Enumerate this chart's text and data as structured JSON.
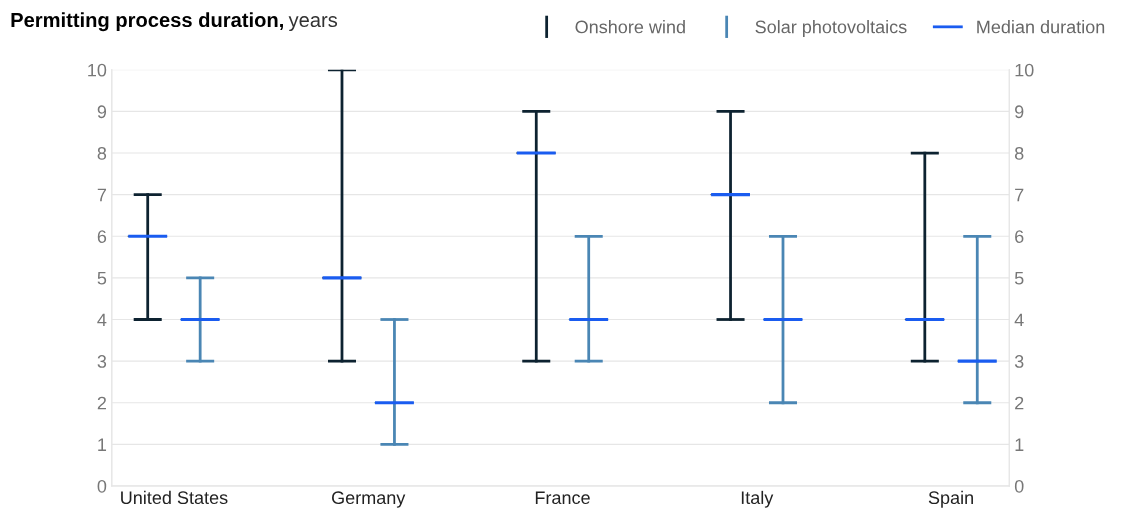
{
  "chart_data": {
    "type": "box",
    "title": "Permitting process duration,",
    "ylabel": "years",
    "categories": [
      "United States",
      "Germany",
      "France",
      "Italy",
      "Spain"
    ],
    "series": [
      {
        "name": "Onshore wind",
        "color": "#0d2230",
        "boxes": [
          {
            "low": 4,
            "q1": 6,
            "median": 6,
            "q3": 6,
            "high": 7
          },
          {
            "low": 3,
            "q1": 5,
            "median": 5,
            "q3": 5,
            "high": 10
          },
          {
            "low": 3,
            "q1": 8,
            "median": 8,
            "q3": 8,
            "high": 9
          },
          {
            "low": 4,
            "q1": 7,
            "median": 7,
            "q3": 7,
            "high": 9
          },
          {
            "low": 3,
            "q1": 4,
            "median": 4,
            "q3": 4,
            "high": 8
          }
        ]
      },
      {
        "name": "Solar photovoltaics",
        "color": "#4a86b4",
        "boxes": [
          {
            "low": 3,
            "q1": 4,
            "median": 4,
            "q3": 4,
            "high": 5
          },
          {
            "low": 1,
            "q1": 2,
            "median": 2,
            "q3": 2,
            "high": 4
          },
          {
            "low": 3,
            "q1": 4,
            "median": 4,
            "q3": 4,
            "high": 6
          },
          {
            "low": 2,
            "q1": 4,
            "median": 4,
            "q3": 4,
            "high": 6
          },
          {
            "low": 2,
            "q1": 3,
            "median": 3,
            "q3": 3,
            "high": 6
          }
        ]
      }
    ],
    "annotations": [
      "Median duration"
    ],
    "ylim": [
      0,
      10
    ],
    "yticks": [
      0,
      1,
      2,
      3,
      4,
      5,
      6,
      7,
      8,
      9,
      10
    ],
    "y2lim": [
      0,
      10
    ],
    "y2ticks": [
      0,
      1,
      2,
      3,
      4,
      5,
      6,
      7,
      8,
      9,
      10
    ],
    "grid": "y",
    "legend": "top right"
  }
}
